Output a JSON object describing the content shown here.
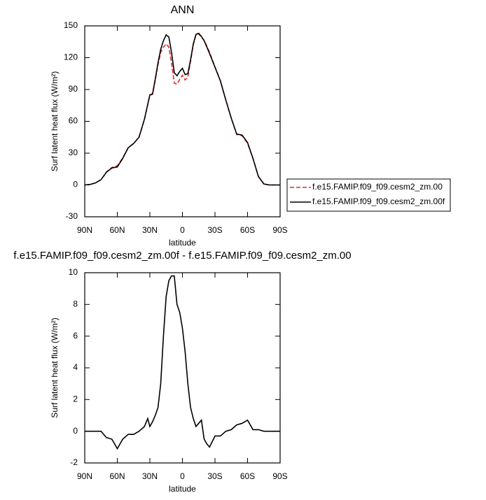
{
  "chart_data": [
    {
      "type": "line",
      "title": "ANN",
      "x_label": "latitude",
      "y_label": "Surf latent heat flux (W/m²)",
      "x": [
        90,
        85,
        80,
        75,
        70,
        65,
        60,
        55,
        50,
        45,
        40,
        35,
        30,
        27.5,
        25,
        22.5,
        20,
        17.5,
        15,
        12.5,
        10,
        7.5,
        5,
        2.5,
        0,
        -2.5,
        -5,
        -7.5,
        -10,
        -12.5,
        -15,
        -17.5,
        -20,
        -22.5,
        -25,
        -30,
        -35,
        -40,
        -45,
        -50,
        -55,
        -60,
        -65,
        -70,
        -75,
        -80,
        -85,
        -90
      ],
      "series": [
        {
          "name": "f.e15.FAMIP.f09_f09.cesm2_zm.00",
          "color": "#e8262b",
          "linestyle": "dashed",
          "values": [
            0,
            0.5,
            2,
            5,
            12.3,
            16.5,
            18.1,
            25.5,
            35.2,
            39.2,
            45,
            61.7,
            84.7,
            85.4,
            99,
            113.5,
            125,
            130,
            133,
            130,
            115,
            96,
            95,
            99.5,
            103.5,
            99,
            102,
            116.5,
            132.2,
            141.7,
            142.5,
            139.3,
            136.5,
            130.8,
            125,
            111.3,
            98.3,
            80,
            62.9,
            47.6,
            46.5,
            39.3,
            24.9,
            7.9,
            1,
            0,
            0,
            0
          ]
        },
        {
          "name": "f.e15.FAMIP.f09_f09.cesm2_zm.00f",
          "color": "#000000",
          "linestyle": "solid",
          "values": [
            0,
            0.5,
            2,
            5,
            12,
            16,
            17,
            25,
            35,
            39,
            45,
            62,
            85,
            86,
            100,
            115,
            128,
            136,
            141.5,
            139.5,
            124.8,
            105.8,
            103,
            107,
            110,
            104,
            105,
            118,
            133,
            142,
            143,
            140,
            136,
            130,
            124,
            111,
            98,
            80,
            63,
            48,
            47,
            40,
            25,
            8,
            1,
            0,
            0,
            0
          ]
        }
      ],
      "xlim": [
        90,
        -90
      ],
      "xticks": [
        {
          "value": 90,
          "label": "90N"
        },
        {
          "value": 60,
          "label": "60N"
        },
        {
          "value": 30,
          "label": "30N"
        },
        0,
        {
          "value": -30,
          "label": "30S"
        },
        {
          "value": -60,
          "label": "60S"
        },
        {
          "value": -90,
          "label": "90S"
        }
      ],
      "ylim": [
        -30,
        150
      ],
      "yticks": [
        -30,
        0,
        30,
        60,
        90,
        120,
        150
      ],
      "legend": "right"
    },
    {
      "type": "line",
      "title": "f.e15.FAMIP.f09_f09.cesm2_zm.00f - f.e15.FAMIP.f09_f09.cesm2_zm.00",
      "x_label": "latitude",
      "y_label": "Surf latent heat flux (W/m²)",
      "x": [
        90,
        85,
        80,
        75,
        70,
        65,
        60,
        55,
        50,
        45,
        40,
        35,
        32,
        30,
        27.5,
        25,
        22.5,
        20,
        17.5,
        15,
        12.5,
        10,
        7.5,
        5,
        2.5,
        0,
        -2.5,
        -5,
        -7.5,
        -10,
        -12.5,
        -15,
        -17.5,
        -20,
        -22.5,
        -25,
        -30,
        -35,
        -40,
        -45,
        -50,
        -55,
        -60,
        -65,
        -70,
        -75,
        -80,
        -85,
        -90
      ],
      "series": [
        {
          "color": "#000000",
          "linestyle": "solid",
          "values": [
            0,
            0,
            0,
            0,
            -0.4,
            -0.5,
            -1.1,
            -0.5,
            -0.2,
            -0.2,
            0,
            0.3,
            0.8,
            0.3,
            0.6,
            1,
            1.5,
            3,
            6,
            8.5,
            9.5,
            9.8,
            9.8,
            8,
            7.5,
            6.5,
            5,
            3,
            1.5,
            0.8,
            0.3,
            0.5,
            0.7,
            -0.5,
            -0.8,
            -1,
            -0.3,
            -0.3,
            0,
            0.1,
            0.4,
            0.5,
            0.7,
            0.1,
            0.1,
            0,
            0,
            0,
            0
          ]
        }
      ],
      "xlim": [
        90,
        -90
      ],
      "xticks": [
        {
          "value": 90,
          "label": "90N"
        },
        {
          "value": 60,
          "label": "60N"
        },
        {
          "value": 30,
          "label": "30N"
        },
        0,
        {
          "value": -30,
          "label": "30S"
        },
        {
          "value": -60,
          "label": "60S"
        },
        {
          "value": -90,
          "label": "90S"
        }
      ],
      "ylim": [
        -2,
        10
      ],
      "yticks": [
        -2,
        0,
        2,
        4,
        6,
        8,
        10
      ]
    }
  ]
}
